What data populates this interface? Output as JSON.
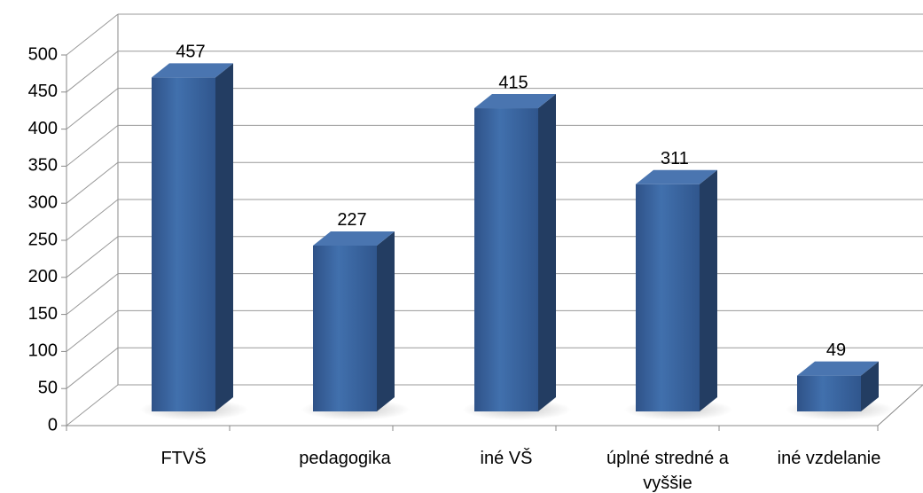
{
  "chart_data": {
    "type": "bar3d",
    "categories": [
      "FTVŠ",
      "pedagogika",
      "iné VŠ",
      "úplné stredné a vyššie",
      "iné vzdelanie"
    ],
    "values": [
      457,
      227,
      415,
      311,
      49
    ],
    "color": "#3b619a",
    "ylim": [
      0,
      500
    ],
    "yticks": [
      0,
      50,
      100,
      150,
      200,
      250,
      300,
      350,
      400,
      450,
      500
    ],
    "grid": true
  }
}
